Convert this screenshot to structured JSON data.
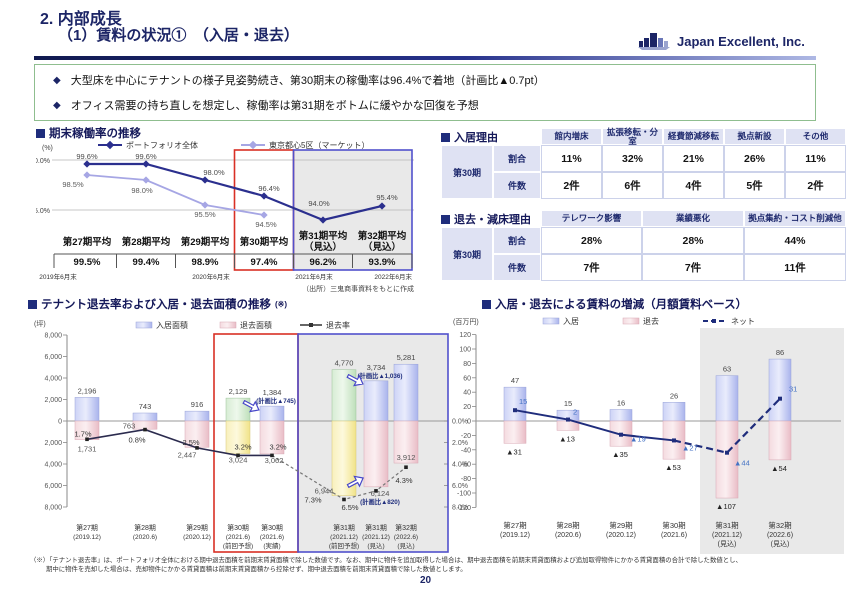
{
  "header": {
    "title_line1": "2. 内部成長",
    "title_line2": "（1）賃料の状況①　（入居・退去）",
    "logo_text": "Japan Excellent, Inc."
  },
  "summary": {
    "bullets": [
      "大型床を中心にテナントの様子見姿勢続き、第30期末の稼働率は96.4%で着地（計画比▲0.7pt）",
      "オフィス需要の持ち直しを想定し、稼働率は第31期をボトムに緩やかな回復を予想"
    ]
  },
  "sections": {
    "occupancy": "期末稼働率の推移",
    "movein": "入居理由",
    "moveout": "退去・減床理由",
    "area": "テナント退去率および入居・退去面積の推移",
    "area_note": "(※)",
    "rent": "入居・退去による賃料の増減（月額賃料ベース）"
  },
  "tables": {
    "movein": {
      "title": "入居理由",
      "columns": [
        "館内増床",
        "拡張移転・分室",
        "経費節減移転",
        "拠点新設",
        "その他"
      ],
      "row_label": "第30期",
      "rows": [
        {
          "label": "割合",
          "values": [
            "11%",
            "32%",
            "21%",
            "26%",
            "11%"
          ]
        },
        {
          "label": "件数",
          "values": [
            "2件",
            "6件",
            "4件",
            "5件",
            "2件"
          ]
        }
      ]
    },
    "moveout": {
      "title": "退去・減床理由",
      "columns": [
        "テレワーク影響",
        "業績悪化",
        "拠点集約・コスト削減他"
      ],
      "row_label": "第30期",
      "rows": [
        {
          "label": "割合",
          "values": [
            "28%",
            "28%",
            "44%"
          ]
        },
        {
          "label": "件数",
          "values": [
            "7件",
            "7件",
            "11件"
          ]
        }
      ]
    }
  },
  "chart_data": [
    {
      "id": "occupancy",
      "type": "line",
      "title": "期末稼働率の推移",
      "unit": "(%)",
      "ylim": [
        93.5,
        100.5
      ],
      "ytick_labels": [
        "100.0%",
        "95.0%"
      ],
      "series": [
        {
          "name": "ポートフォリオ全体",
          "color": "#2b2f8e",
          "values": [
            99.6,
            99.6,
            98.0,
            96.4,
            94.0,
            95.4
          ]
        },
        {
          "name": "東京都心5区（マーケット）",
          "color": "#a6a6e4",
          "values": [
            98.5,
            98.0,
            95.5,
            94.5
          ]
        }
      ],
      "categories": [
        "第27期平均",
        "第28期平均",
        "第29期平均",
        "第30期平均",
        "第31期平均\n（見込）",
        "第32期平均\n（見込）"
      ],
      "period_averages": [
        "99.5%",
        "99.4%",
        "98.9%",
        "97.4%",
        "96.2%",
        "93.9%"
      ],
      "date_labels": [
        "2019年6月末",
        "2020年6月末",
        "2021年6月末",
        "2022年6月末"
      ],
      "source": "（出所）三鬼商事資料をもとに作成",
      "current_period_index": 3,
      "forecast_indices": [
        4,
        5
      ]
    },
    {
      "id": "tenant-area",
      "type": "bar-line",
      "title": "テナント退去率および入居・退去面積の推移(※)",
      "unit_left": "(坪)",
      "legend": [
        "入居面積",
        "退去面積",
        "退去率"
      ],
      "left_axis_labels": [
        "8,000",
        "6,000",
        "4,000",
        "2,000",
        "0",
        "2,000",
        "4,000",
        "6,000",
        "8,000"
      ],
      "right_axis_labels": [
        "0.0%",
        "2.0%",
        "4.0%",
        "6.0%",
        "8.0%"
      ],
      "columns": [
        {
          "period": "第27期",
          "date": "(2019.12)",
          "note": "",
          "movein_tsubo": 2196,
          "moveout_tsubo": 1731,
          "moveout_rate_pct": 1.7,
          "is_prev_forecast": false
        },
        {
          "period": "第28期",
          "date": "(2020.6)",
          "note": "",
          "movein_tsubo": 743,
          "moveout_tsubo": 763,
          "moveout_rate_pct": 0.8,
          "is_prev_forecast": false
        },
        {
          "period": "第29期",
          "date": "(2020.12)",
          "note": "",
          "movein_tsubo": 916,
          "moveout_tsubo": 2447,
          "moveout_rate_pct": 2.5,
          "is_prev_forecast": false
        },
        {
          "period": "第30期",
          "date": "(2021.6)",
          "note": "(前回予想)",
          "movein_tsubo": 2129,
          "moveout_tsubo": 3024,
          "moveout_rate_pct": 3.2,
          "is_prev_forecast": true
        },
        {
          "period": "第30期",
          "date": "(2021.6)",
          "note": "(実績)",
          "movein_tsubo": 1384,
          "movein_vs_plan": "(計画比▲745)",
          "moveout_tsubo": 3062,
          "moveout_rate_pct": 3.2,
          "is_prev_forecast": false
        },
        {
          "period": "第31期",
          "date": "(2021.12)",
          "note": "(前回予想)",
          "movein_tsubo": 4770,
          "moveout_tsubo": 6944,
          "moveout_rate_pct": 7.3,
          "is_prev_forecast": true
        },
        {
          "period": "第31期",
          "date": "(2021.12)",
          "note": "(見込)",
          "movein_tsubo": 3734,
          "movein_vs_plan": "(計画比▲1,036)",
          "moveout_tsubo": 6124,
          "moveout_vs_plan": "(計画比▲820)",
          "moveout_rate_pct": 6.5,
          "is_prev_forecast": false
        },
        {
          "period": "第32期",
          "date": "(2022.6)",
          "note": "(見込)",
          "movein_tsubo": 5281,
          "moveout_tsubo": 3912,
          "moveout_rate_pct": 4.3,
          "is_prev_forecast": false
        }
      ],
      "current_box_columns": [
        3,
        4
      ],
      "forecast_zone_columns": [
        5,
        6,
        7
      ]
    },
    {
      "id": "rent-change",
      "type": "bar-line",
      "title": "入居・退去による賃料の増減（月額賃料ベース）",
      "unit": "(百万円)",
      "legend": [
        "入居",
        "退去",
        "ネット"
      ],
      "ylim": [
        -120,
        120
      ],
      "ytick_step": 20,
      "columns": [
        {
          "period": "第27期",
          "date": "(2019.12)",
          "note": "",
          "movein_rent": 47,
          "moveout_rent": -31,
          "net": 15
        },
        {
          "period": "第28期",
          "date": "(2020.6)",
          "note": "",
          "movein_rent": 15,
          "moveout_rent": -13,
          "net": 2
        },
        {
          "period": "第29期",
          "date": "(2020.12)",
          "note": "",
          "movein_rent": 16,
          "moveout_rent": -35,
          "net": -19
        },
        {
          "period": "第30期",
          "date": "(2021.6)",
          "note": "",
          "movein_rent": 26,
          "moveout_rent": -53,
          "net": -27
        },
        {
          "period": "第31期",
          "date": "(2021.12)",
          "note": "(見込)",
          "movein_rent": 63,
          "moveout_rent": -107,
          "net": -44
        },
        {
          "period": "第32期",
          "date": "(2022.6)",
          "note": "(見込)",
          "movein_rent": 86,
          "moveout_rent": -54,
          "net": 31
        }
      ],
      "forecast_start_index": 4,
      "negative_mark": "▲"
    }
  ],
  "footnotes": [
    "（※）「テナント退去率」は、ポートフォリオ全体における期中退去面積を前期末賃貸面積で除した数値です。なお、期中に物件を追加取得した場合は、期中退去面積を前期末賃貸面積および追加取得物件にかかる賃貸面積の合計で除した数値とし、",
    "期中に物件を売却した場合は、売却物件にかかる賃貸面積は前期末賃貸面積から控除せず、期中退去面積を前期末賃貸面積で除した数値とします。"
  ],
  "page_number": "20",
  "colors": {
    "navy": "#1c2566",
    "line_portfolio": "#2b2f8e",
    "line_market": "#a6a6e4",
    "bar_blue": "#b3bcee",
    "bar_pink": "#eec3cb",
    "bar_green": "#c8e3c4",
    "bar_yellow": "#f5e9a0",
    "box_red": "#d93025",
    "box_blue": "#5151cc",
    "forecast_gray": "#e9e9e9",
    "summary_border_green": "#8fbe8f",
    "net_label_blue": "#4472c4"
  }
}
